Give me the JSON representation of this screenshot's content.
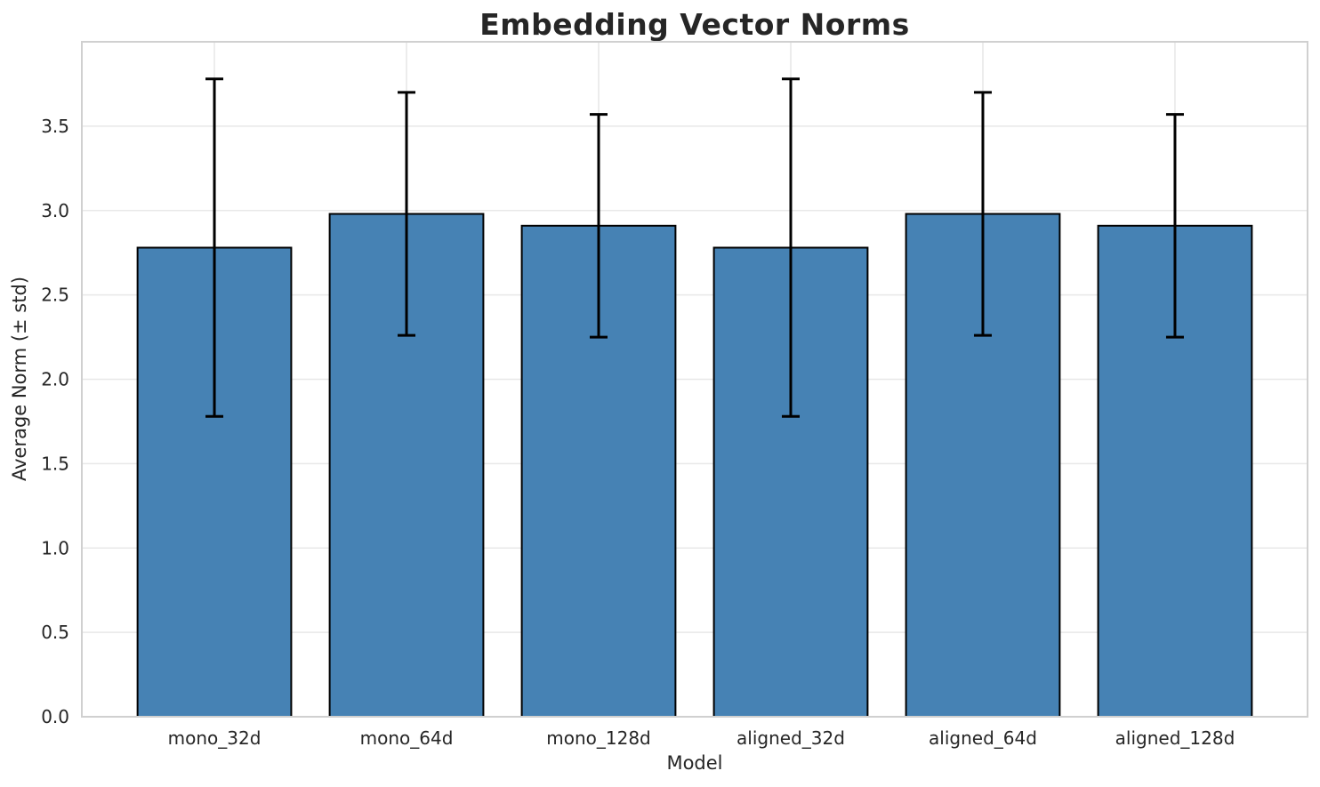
{
  "chart_data": {
    "type": "bar",
    "title": "Embedding Vector Norms",
    "xlabel": "Model",
    "ylabel": "Average Norm (± std)",
    "categories": [
      "mono_32d",
      "mono_64d",
      "mono_128d",
      "aligned_32d",
      "aligned_64d",
      "aligned_128d"
    ],
    "values": [
      2.78,
      2.98,
      2.91,
      2.78,
      2.98,
      2.91
    ],
    "errors": [
      1.0,
      0.72,
      0.66,
      1.0,
      0.72,
      0.66
    ],
    "yticks": [
      "0.0",
      "0.5",
      "1.0",
      "1.5",
      "2.0",
      "2.5",
      "3.0",
      "3.5"
    ],
    "ytick_values": [
      0.0,
      0.5,
      1.0,
      1.5,
      2.0,
      2.5,
      3.0,
      3.5
    ],
    "ylim": [
      0,
      4.0
    ],
    "grid": true,
    "legend": "none",
    "colors": {
      "bar_fill": "#4682B4",
      "bar_edge": "#000000",
      "error_bar": "#000000",
      "grid_line": "#e8e8e8",
      "spine": "#d0d0d0",
      "text": "#262626",
      "background": "#ffffff"
    }
  }
}
